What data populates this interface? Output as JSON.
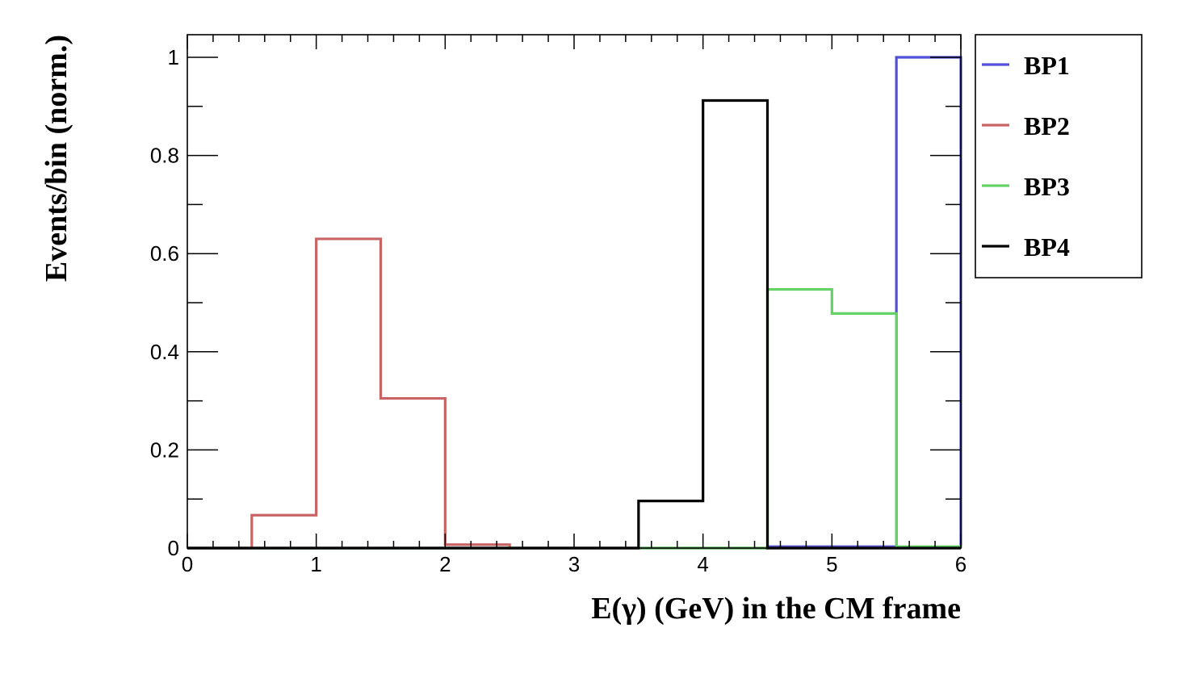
{
  "chart_data": {
    "type": "histogram",
    "title": "",
    "xlabel": "E(γ) (GeV) in the CM frame",
    "ylabel": "Events/bin (norm.)",
    "xlim": [
      0,
      6
    ],
    "ylim": [
      0,
      1.05
    ],
    "x_ticks": [
      "0",
      "1",
      "2",
      "3",
      "4",
      "5",
      "6"
    ],
    "y_ticks": [
      "0",
      "0.2",
      "0.4",
      "0.6",
      "0.8",
      "1"
    ],
    "bin_edges": [
      0,
      0.5,
      1,
      1.5,
      2,
      2.5,
      3,
      3.5,
      4,
      4.5,
      5,
      5.5,
      6
    ],
    "grid": false,
    "legend_position": "top-right outside",
    "series": [
      {
        "name": "BP1",
        "color": "#5050d8",
        "values": [
          0,
          0,
          0,
          0,
          0,
          0,
          0,
          0,
          0,
          0.003,
          0.003,
          1.0
        ]
      },
      {
        "name": "BP2",
        "color": "#c86464",
        "values": [
          0,
          0.067,
          0.63,
          0.305,
          0.007,
          0,
          0,
          0,
          0,
          0,
          0,
          0
        ]
      },
      {
        "name": "BP3",
        "color": "#64d264",
        "values": [
          0,
          0,
          0,
          0,
          0,
          0,
          0,
          0,
          0,
          0.527,
          0.478,
          0.003
        ]
      },
      {
        "name": "BP4",
        "color": "#000000",
        "values": [
          0,
          0,
          0,
          0,
          0,
          0,
          0,
          0.096,
          0.912,
          0,
          0,
          0
        ]
      }
    ]
  }
}
